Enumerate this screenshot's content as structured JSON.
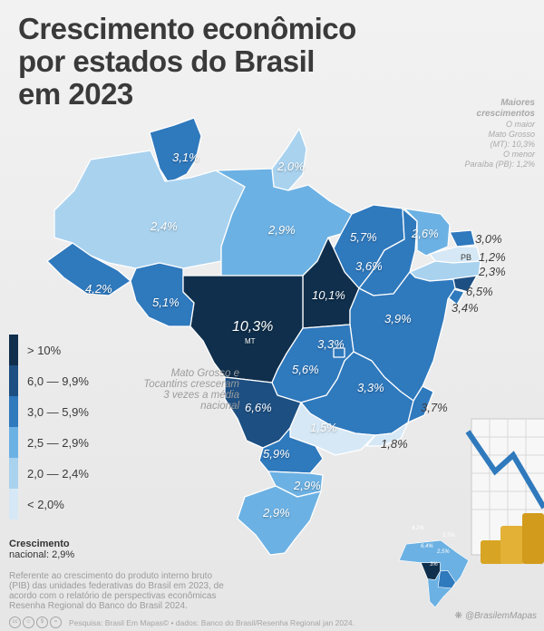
{
  "title_lines": [
    "Crescimento econômico",
    "por estados do Brasil",
    "em 2023"
  ],
  "side_note": {
    "heading_1": "Maiores",
    "heading_2": "crescimentos",
    "max_label": "O maior",
    "max_state": "Mato Grosso",
    "max_value": "(MT): 10,3%",
    "min_label": "O menor",
    "min_value": "Paraíba (PB): 1,2%"
  },
  "annotation": [
    "Mato Grosso e",
    "Tocantins cresceram",
    "3 vezes a média",
    "nacional"
  ],
  "legend": [
    {
      "label": "> 10%",
      "color": "#0f2f4c"
    },
    {
      "label": "6,0 — 9,9%",
      "color": "#1d4f82"
    },
    {
      "label": "3,0 — 5,9%",
      "color": "#2f79bd"
    },
    {
      "label": "2,5 — 2,9%",
      "color": "#6cb1e3"
    },
    {
      "label": "2,0 — 2,4%",
      "color": "#a9d2ef"
    },
    {
      "label": "< 2,0%",
      "color": "#d6e8f5"
    }
  ],
  "national": {
    "label": "Crescimento",
    "value": "nacional: 2,9%"
  },
  "reference": [
    "Referente ao crescimento do produto interno bruto",
    "(PIB) das unidades federativas do Brasil em 2023, de",
    "acordo com o relatório de perspectivas econômicas",
    "Resenha Regional do Banco do Brasil 2024."
  ],
  "footer": {
    "source": "Pesquisa: Brasil Em Mapas© • dados: Banco do Brasil/Resenha Regional jan 2024.",
    "handle": "@BrasilemMapas"
  },
  "states": [
    {
      "code": "RR",
      "value": "3,1%",
      "color": "#2f79bd"
    },
    {
      "code": "AP",
      "value": "2,0%",
      "color": "#a9d2ef"
    },
    {
      "code": "AM",
      "value": "2,4%",
      "color": "#a9d2ef"
    },
    {
      "code": "PA",
      "value": "2,9%",
      "color": "#6cb1e3"
    },
    {
      "code": "MA",
      "value": "5,7%",
      "color": "#2f79bd"
    },
    {
      "code": "CE",
      "value": "2,6%",
      "color": "#6cb1e3"
    },
    {
      "code": "RN",
      "value": "3,0%",
      "color": "#2f79bd"
    },
    {
      "code": "PB",
      "value": "1,2%",
      "color": "#d6e8f5"
    },
    {
      "code": "PE",
      "value": "2,3%",
      "color": "#a9d2ef"
    },
    {
      "code": "AL",
      "value": "6,5%",
      "color": "#1d4f82"
    },
    {
      "code": "SE",
      "value": "3,4%",
      "color": "#2f79bd"
    },
    {
      "code": "PI",
      "value": "3,6%",
      "color": "#2f79bd"
    },
    {
      "code": "TO",
      "value": "10,1%",
      "color": "#0f2f4c"
    },
    {
      "code": "BA",
      "value": "3,9%",
      "color": "#2f79bd"
    },
    {
      "code": "AC",
      "value": "4,2%",
      "color": "#2f79bd"
    },
    {
      "code": "RO",
      "value": "5,1%",
      "color": "#2f79bd"
    },
    {
      "code": "MT",
      "value": "10,3%",
      "color": "#0f2f4c"
    },
    {
      "code": "GO",
      "value": "5,6%",
      "color": "#2f79bd"
    },
    {
      "code": "DF",
      "value": "3,3%",
      "color": "#2f79bd"
    },
    {
      "code": "MG",
      "value": "3,3%",
      "color": "#2f79bd"
    },
    {
      "code": "ES",
      "value": "3,7%",
      "color": "#2f79bd"
    },
    {
      "code": "MS",
      "value": "6,6%",
      "color": "#1d4f82"
    },
    {
      "code": "SP",
      "value": "1,5%",
      "color": "#d6e8f5"
    },
    {
      "code": "RJ",
      "value": "1,8%",
      "color": "#d6e8f5"
    },
    {
      "code": "PR",
      "value": "5,9%",
      "color": "#2f79bd"
    },
    {
      "code": "SC",
      "value": "2,9%",
      "color": "#6cb1e3"
    },
    {
      "code": "RS",
      "value": "2,9%",
      "color": "#6cb1e3"
    }
  ],
  "mt_sublabel": "MT",
  "pb_tag": "PB",
  "inset_values": [
    "4,2%",
    "3,5%",
    "6,4%",
    "2,5%",
    "3%"
  ]
}
